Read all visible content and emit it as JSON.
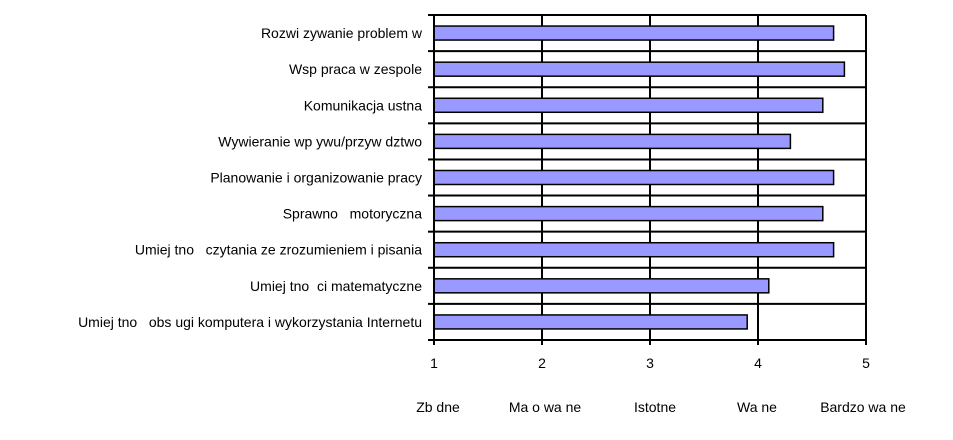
{
  "chart_data": {
    "type": "bar",
    "orientation": "horizontal",
    "categories": [
      "Rozwi zywanie problem w",
      "Wsp praca w zespole",
      "Komunikacja ustna",
      "Wywieranie wp ywu/przyw dztwo",
      "Planowanie i organizowanie pracy",
      "Sprawno   motoryczna",
      "Umiej tno   czytania ze zrozumieniem i pisania",
      "Umiej tno  ci matematyczne",
      "Umiej tno   obs ugi komputera i wykorzystania Internetu"
    ],
    "values": [
      4.7,
      4.8,
      4.6,
      4.3,
      4.7,
      4.6,
      4.7,
      4.1,
      3.9
    ],
    "xlim": [
      1,
      5
    ],
    "xticks": [
      1,
      2,
      3,
      4,
      5
    ],
    "scale_labels": [
      "Zb dne",
      "Ma o wa ne",
      "Istotne",
      "Wa ne",
      "Bardzo wa ne"
    ],
    "grid": "vertical",
    "legend": "none",
    "title": "",
    "xlabel": "",
    "ylabel": "",
    "colors": {
      "bar_fill": "#9999ff",
      "bar_stroke": "#000000",
      "axis": "#000000",
      "background": "#ffffff"
    }
  }
}
